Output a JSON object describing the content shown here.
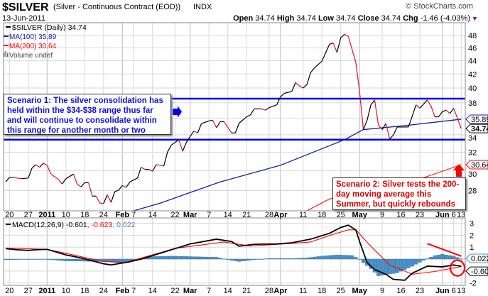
{
  "header": {
    "symbol": "$SILVER",
    "description": "(Silver - Continuous Contract (EOD))",
    "exchange": "INDX",
    "date": "13-Jun-2011",
    "copyright": "© StockCharts.com",
    "quote": {
      "open_label": "Open",
      "open": "34.74",
      "high_label": "High",
      "high": "34.74",
      "low_label": "Low",
      "low": "34.74",
      "close_label": "Close",
      "close": "34.74",
      "chg_label": "Chg",
      "chg": "-1.46 (-4.03%)",
      "chg_arrow": "▼"
    }
  },
  "legend": {
    "price": "$SILVER (Daily) 34.74",
    "ma100": "MA(100) 35.89",
    "ma200": "MA(200) 30.64",
    "volume": "Volume undef",
    "macd_name": "MACD(12,26,9)",
    "macd_val": " -0.601",
    "signal_val": ", -0.623",
    "hist_val": ", 0.022"
  },
  "annotations": {
    "scenario1": "Scenario 1: The silver consolidation has held within the $34-$38 range thus far and will continue to consolidate within this range for another month or two",
    "scenario2": "Scenario 2: Silver tests the 200-day moving average this Summer, but quickly rebounds"
  },
  "colors": {
    "price_up": "#000000",
    "price_down": "#e0102a",
    "ma100": "#1a1aa0",
    "ma200": "#ff0000",
    "range": "#0000ee",
    "hist": "#4a90c8",
    "signal": "#ff0000",
    "annotation_red": "#ff0000",
    "grid": "#d8d8d8"
  },
  "chart_data": {
    "type": "line",
    "title": "$SILVER (Silver - Continuous Contract (EOD)) INDX",
    "x_labels": [
      {
        "label": "20",
        "day": 1,
        "bold": false
      },
      {
        "label": "27",
        "day": 6,
        "bold": false
      },
      {
        "label": "2011",
        "day": 11,
        "bold": true
      },
      {
        "label": "10",
        "day": 16,
        "bold": false
      },
      {
        "label": "18",
        "day": 21,
        "bold": false
      },
      {
        "label": "24",
        "day": 26,
        "bold": false
      },
      {
        "label": "Feb",
        "day": 31,
        "bold": true
      },
      {
        "label": "7",
        "day": 34,
        "bold": false
      },
      {
        "label": "14",
        "day": 39,
        "bold": false
      },
      {
        "label": "22",
        "day": 45,
        "bold": false
      },
      {
        "label": "Mar",
        "day": 49,
        "bold": true
      },
      {
        "label": "7",
        "day": 54,
        "bold": false
      },
      {
        "label": "14",
        "day": 59,
        "bold": false
      },
      {
        "label": "21",
        "day": 64,
        "bold": false
      },
      {
        "label": "28",
        "day": 70,
        "bold": false
      },
      {
        "label": "Apr",
        "day": 73,
        "bold": true
      },
      {
        "label": "11",
        "day": 79,
        "bold": false
      },
      {
        "label": "18",
        "day": 84,
        "bold": false
      },
      {
        "label": "25",
        "day": 89,
        "bold": false
      },
      {
        "label": "May",
        "day": 94,
        "bold": true
      },
      {
        "label": "9",
        "day": 100,
        "bold": false
      },
      {
        "label": "16",
        "day": 105,
        "bold": false
      },
      {
        "label": "23",
        "day": 110,
        "bold": false
      },
      {
        "label": "Jun",
        "day": 116,
        "bold": true
      },
      {
        "label": "6",
        "day": 119,
        "bold": false
      },
      {
        "label": "13",
        "day": 121,
        "bold": false
      }
    ],
    "price_panel": {
      "yscale": "log",
      "ylim": [
        26.1,
        50.2
      ],
      "yticks": [
        28,
        30,
        32,
        34,
        36,
        38,
        40,
        42,
        44,
        46,
        48
      ],
      "range_lines": [
        38.55,
        33.43
      ],
      "series": [
        {
          "name": "$SILVER (Daily)",
          "points": [
            [
              0,
              28.86
            ],
            [
              1,
              29.32
            ],
            [
              2,
              29.32
            ],
            [
              4,
              29.18
            ],
            [
              6,
              29.25
            ],
            [
              7,
              30.29
            ],
            [
              8,
              30.65
            ],
            [
              9,
              30.37
            ],
            [
              10,
              30.79
            ],
            [
              11,
              30.58
            ],
            [
              12,
              29.66
            ],
            [
              14,
              29.12
            ],
            [
              15,
              28.65
            ],
            [
              16,
              29.18
            ],
            [
              18,
              29.66
            ],
            [
              19,
              28.65
            ],
            [
              20,
              28.37
            ],
            [
              21,
              28.78
            ],
            [
              22,
              28.78
            ],
            [
              23,
              27.47
            ],
            [
              24,
              27.47
            ],
            [
              25,
              26.82
            ],
            [
              26,
              26.77
            ],
            [
              27,
              27.6
            ],
            [
              28,
              26.88
            ],
            [
              29,
              27.91
            ],
            [
              30,
              28.04
            ],
            [
              31,
              28.51
            ],
            [
              32,
              28.31
            ],
            [
              33,
              28.86
            ],
            [
              35,
              29.25
            ],
            [
              36,
              30.37
            ],
            [
              37,
              30.15
            ],
            [
              38,
              30.15
            ],
            [
              39,
              29.94
            ],
            [
              40,
              30.65
            ],
            [
              41,
              30.58
            ],
            [
              42,
              30.5
            ],
            [
              43,
              32.04
            ],
            [
              44,
              32.8
            ],
            [
              46,
              33.42
            ],
            [
              47,
              32.11
            ],
            [
              48,
              33.12
            ],
            [
              49,
              33.81
            ],
            [
              50,
              34.45
            ],
            [
              51,
              34.22
            ],
            [
              52,
              35.35
            ],
            [
              54,
              35.68
            ],
            [
              55,
              35.76
            ],
            [
              56,
              34.85
            ],
            [
              57,
              35.59
            ],
            [
              58,
              35.59
            ],
            [
              60,
              34.22
            ],
            [
              61,
              34.22
            ],
            [
              62,
              35.4
            ],
            [
              64,
              36.19
            ],
            [
              65,
              36.43
            ],
            [
              66,
              37.2
            ],
            [
              67,
              37.2
            ],
            [
              68,
              37.2
            ],
            [
              69,
              37.04
            ],
            [
              70,
              37.37
            ],
            [
              72,
              37.73
            ],
            [
              73,
              38.81
            ],
            [
              74,
              39.27
            ],
            [
              76,
              39.53
            ],
            [
              77,
              40.76
            ],
            [
              78,
              40.28
            ],
            [
              79,
              40.0
            ],
            [
              80,
              40.48
            ],
            [
              81,
              42.2
            ],
            [
              82,
              42.9
            ],
            [
              84,
              43.92
            ],
            [
              86,
              46.56
            ],
            [
              87,
              46.78
            ],
            [
              88,
              45.27
            ],
            [
              89,
              47.66
            ],
            [
              90,
              48.2
            ],
            [
              91,
              47.9
            ],
            [
              93,
              43.72
            ],
            [
              94,
              39.53
            ],
            [
              95,
              34.62
            ],
            [
              96,
              35.76
            ],
            [
              97,
              37.73
            ],
            [
              98,
              38.37
            ],
            [
              99,
              35.17
            ],
            [
              100,
              34.62
            ],
            [
              101,
              35.35
            ],
            [
              102,
              33.5
            ],
            [
              103,
              33.99
            ],
            [
              104,
              34.93
            ],
            [
              107,
              34.93
            ],
            [
              109,
              37.73
            ],
            [
              110,
              37.3
            ],
            [
              112,
              38.37
            ],
            [
              113,
              37.55
            ],
            [
              114,
              36.19
            ],
            [
              115,
              36.19
            ],
            [
              116,
              36.85
            ],
            [
              117,
              37.04
            ],
            [
              118,
              36.61
            ],
            [
              119,
              37.3
            ],
            [
              120,
              36.01
            ],
            [
              121,
              34.74
            ]
          ]
        },
        {
          "name": "MA(100)",
          "points": [
            [
              34,
              26.1
            ],
            [
              41,
              26.8
            ],
            [
              57,
              28.86
            ],
            [
              73,
              30.58
            ],
            [
              90,
              33.42
            ],
            [
              95,
              34.62
            ],
            [
              106,
              35.1
            ],
            [
              121,
              35.89
            ]
          ]
        },
        {
          "name": "MA(200)",
          "points": [
            [
              80,
              26.1
            ],
            [
              86,
              27.2
            ],
            [
              105,
              28.5
            ],
            [
              121,
              30.64
            ]
          ]
        }
      ],
      "last_labels": [
        {
          "text": "35.89",
          "value": 35.89,
          "series": "MA(100)"
        },
        {
          "text": "34.74",
          "value": 34.74,
          "series": "$SILVER (Daily)"
        },
        {
          "text": "30.64",
          "value": 30.64,
          "series": "MA(200)"
        }
      ]
    },
    "macd_panel": {
      "ylim": [
        -2.2,
        3.45
      ],
      "yticks": [
        -2,
        -1,
        0,
        1,
        2,
        3
      ],
      "macd": [
        [
          0,
          0.88
        ],
        [
          3,
          0.78
        ],
        [
          6,
          0.73
        ],
        [
          8,
          0.78
        ],
        [
          11,
          0.82
        ],
        [
          16,
          0.35
        ],
        [
          20,
          0.1
        ],
        [
          26,
          -0.39
        ],
        [
          28,
          -0.49
        ],
        [
          33,
          -0.22
        ],
        [
          36,
          0.0
        ],
        [
          39,
          0.29
        ],
        [
          44,
          0.78
        ],
        [
          49,
          1.27
        ],
        [
          56,
          1.67
        ],
        [
          60,
          1.47
        ],
        [
          62,
          1.08
        ],
        [
          66,
          1.24
        ],
        [
          72,
          1.27
        ],
        [
          76,
          1.37
        ],
        [
          81,
          1.67
        ],
        [
          86,
          2.16
        ],
        [
          89,
          2.65
        ],
        [
          91,
          2.84
        ],
        [
          93,
          2.45
        ],
        [
          94,
          1.47
        ],
        [
          96,
          -0.29
        ],
        [
          98,
          -0.88
        ],
        [
          101,
          -1.27
        ],
        [
          103,
          -1.7
        ],
        [
          106,
          -1.77
        ],
        [
          108,
          -1.18
        ],
        [
          112,
          -0.59
        ],
        [
          116,
          -0.65
        ],
        [
          119,
          -0.49
        ],
        [
          121,
          -0.601
        ]
      ],
      "signal": [
        [
          0,
          0.92
        ],
        [
          11,
          0.82
        ],
        [
          26,
          -0.2
        ],
        [
          32,
          -0.27
        ],
        [
          45,
          0.9
        ],
        [
          58,
          1.43
        ],
        [
          65,
          1.1
        ],
        [
          73,
          1.25
        ],
        [
          81,
          1.43
        ],
        [
          86,
          1.98
        ],
        [
          91,
          2.45
        ],
        [
          93,
          2.45
        ],
        [
          97,
          1.08
        ],
        [
          102,
          -0.49
        ],
        [
          108,
          -1.27
        ],
        [
          114,
          -1.04
        ],
        [
          121,
          -0.623
        ]
      ],
      "histogram": [
        [
          0,
          -0.05
        ],
        [
          10,
          0.0
        ],
        [
          16,
          -0.15
        ],
        [
          25,
          -0.2
        ],
        [
          30,
          -0.3
        ],
        [
          33,
          -0.2
        ],
        [
          38,
          0.2
        ],
        [
          44,
          0.25
        ],
        [
          50,
          0.2
        ],
        [
          56,
          0.15
        ],
        [
          60,
          -0.1
        ],
        [
          62,
          -0.2
        ],
        [
          66,
          -0.05
        ],
        [
          70,
          0.05
        ],
        [
          76,
          0.05
        ],
        [
          80,
          0.1
        ],
        [
          84,
          0.25
        ],
        [
          88,
          0.35
        ],
        [
          92,
          0.3
        ],
        [
          94,
          0.0
        ],
        [
          95,
          -0.3
        ],
        [
          97,
          -0.8
        ],
        [
          99,
          -1.4
        ],
        [
          101,
          -1.3
        ],
        [
          104,
          -1.15
        ],
        [
          108,
          -0.6
        ],
        [
          111,
          -0.1
        ],
        [
          114,
          0.3
        ],
        [
          116,
          0.4
        ],
        [
          119,
          0.25
        ],
        [
          121,
          0.022
        ]
      ],
      "last_labels": [
        {
          "text": "0.022",
          "value": 0.022,
          "series": "histogram"
        },
        {
          "text": "-0.601",
          "value": -0.601,
          "series": "MACD"
        }
      ],
      "divergence_line": [
        [
          112,
          1.3
        ],
        [
          121,
          0.25
        ]
      ],
      "circle_day": 120,
      "circle_value": -0.75
    }
  }
}
